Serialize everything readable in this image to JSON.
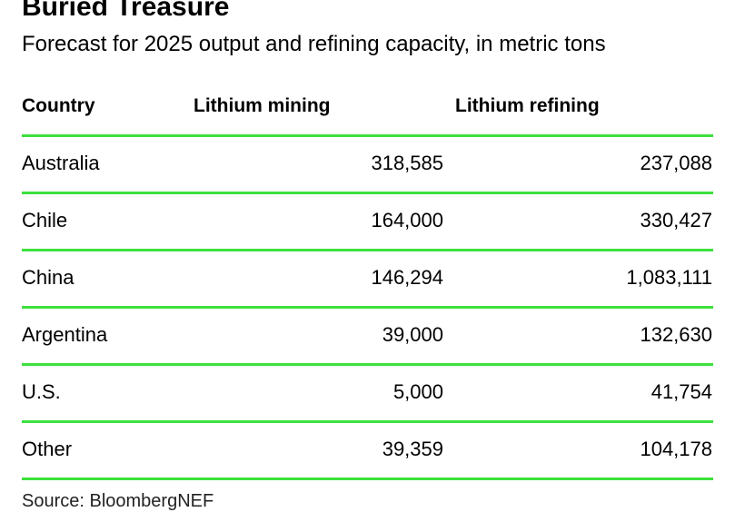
{
  "title": "Buried Treasure",
  "subtitle": "Forecast for 2025 output and refining capacity, in metric tons",
  "source": "Source: BloombergNEF",
  "colors": {
    "rule": "#3de03d",
    "text": "#000000"
  },
  "chart_data": {
    "type": "table",
    "title": "Buried Treasure",
    "subtitle": "Forecast for 2025 output and refining capacity, in metric tons",
    "columns": [
      "Country",
      "Lithium mining",
      "Lithium refining"
    ],
    "rows": [
      {
        "country": "Australia",
        "mining": "318,585",
        "refining": "237,088"
      },
      {
        "country": "Chile",
        "mining": "164,000",
        "refining": "330,427"
      },
      {
        "country": "China",
        "mining": "146,294",
        "refining": "1,083,111"
      },
      {
        "country": "Argentina",
        "mining": "39,000",
        "refining": "132,630"
      },
      {
        "country": "U.S.",
        "mining": "5,000",
        "refining": "41,754"
      },
      {
        "country": "Other",
        "mining": "39,359",
        "refining": "104,178"
      }
    ],
    "series": [
      {
        "name": "Lithium mining",
        "values": [
          318585,
          164000,
          146294,
          39000,
          5000,
          39359
        ]
      },
      {
        "name": "Lithium refining",
        "values": [
          237088,
          330427,
          1083111,
          132630,
          41754,
          104178
        ]
      }
    ],
    "categories": [
      "Australia",
      "Chile",
      "China",
      "Argentina",
      "U.S.",
      "Other"
    ]
  }
}
